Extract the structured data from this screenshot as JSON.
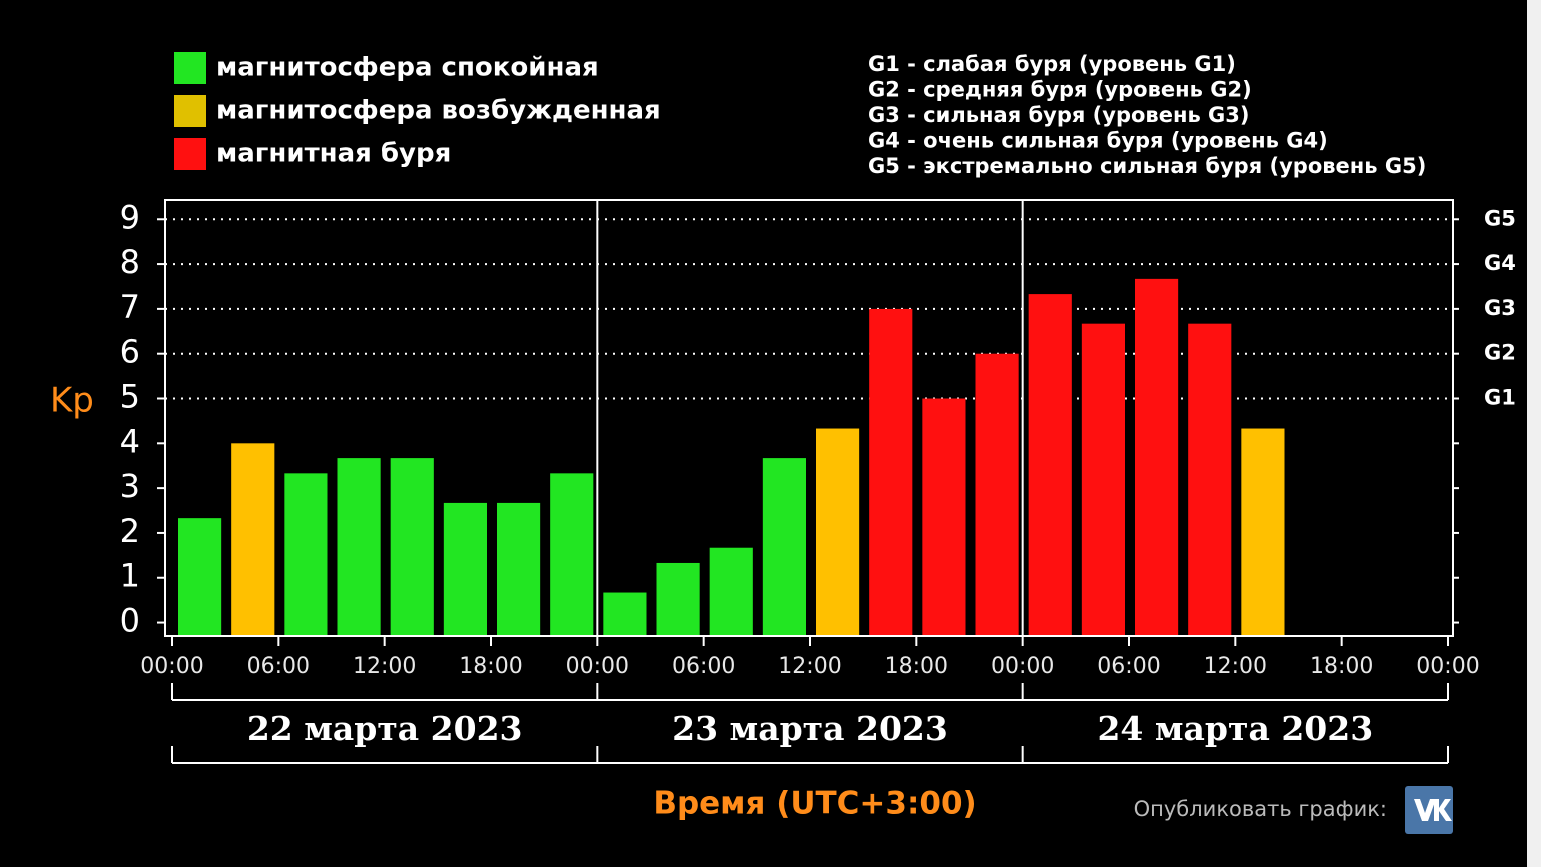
{
  "chart_data": {
    "type": "bar",
    "legend": [
      {
        "label": "магнитосфера спокойная",
        "color": "#22e622"
      },
      {
        "label": "магнитосфера возбужденная",
        "color": "#e0c000"
      },
      {
        "label": "магнитная буря",
        "color": "#ff1010"
      }
    ],
    "storm_levels": [
      "G1 - слабая буря (уровень G1)",
      "G2 - средняя буря (уровень G2)",
      "G3 - сильная буря (уровень G3)",
      "G4 - очень сильная буря (уровень G4)",
      "G5 - экстремально сильная буря (уровень G5)"
    ],
    "ylabel": "Kp",
    "xlabel": "Время (UTC+3:00)",
    "dates": [
      "22 марта 2023",
      "23 марта 2023",
      "24 марта 2023"
    ],
    "x": [
      0,
      3,
      6,
      9,
      12,
      15,
      18,
      21,
      24,
      27,
      30,
      33,
      36,
      39,
      42,
      45,
      48,
      51,
      54,
      57,
      60
    ],
    "values": [
      2.33,
      4.0,
      3.33,
      3.67,
      3.67,
      2.67,
      2.67,
      3.33,
      0.67,
      1.33,
      1.67,
      3.67,
      4.33,
      7.0,
      5.0,
      6.0,
      7.33,
      6.67,
      7.67,
      6.67,
      4.33
    ],
    "colors": [
      "#22e622",
      "#ffc000",
      "#22e622",
      "#22e622",
      "#22e622",
      "#22e622",
      "#22e622",
      "#22e622",
      "#22e622",
      "#22e622",
      "#22e622",
      "#22e622",
      "#ffc000",
      "#ff1010",
      "#ff1010",
      "#ff1010",
      "#ff1010",
      "#ff1010",
      "#ff1010",
      "#ff1010",
      "#ffc000"
    ],
    "xlim": [
      0,
      72
    ],
    "xticks": [
      {
        "value": 0,
        "label": "00:00"
      },
      {
        "value": 6,
        "label": "06:00"
      },
      {
        "value": 12,
        "label": "12:00"
      },
      {
        "value": 18,
        "label": "18:00"
      },
      {
        "value": 24,
        "label": "00:00"
      },
      {
        "value": 30,
        "label": "06:00"
      },
      {
        "value": 36,
        "label": "12:00"
      },
      {
        "value": 42,
        "label": "18:00"
      },
      {
        "value": 48,
        "label": "00:00"
      },
      {
        "value": 54,
        "label": "06:00"
      },
      {
        "value": 60,
        "label": "12:00"
      },
      {
        "value": 66,
        "label": "18:00"
      },
      {
        "value": 72,
        "label": "00:00"
      }
    ],
    "ylim": [
      -0.3,
      9.43
    ],
    "yticks": [
      0,
      1,
      2,
      3,
      4,
      5,
      6,
      7,
      8,
      9
    ],
    "y2ticks": [
      {
        "value": 5,
        "label": "G1"
      },
      {
        "value": 6,
        "label": "G2"
      },
      {
        "value": 7,
        "label": "G3"
      },
      {
        "value": 8,
        "label": "G4"
      },
      {
        "value": 9,
        "label": "G5"
      }
    ],
    "grid": true,
    "share_label": "Опубликовать график:"
  }
}
